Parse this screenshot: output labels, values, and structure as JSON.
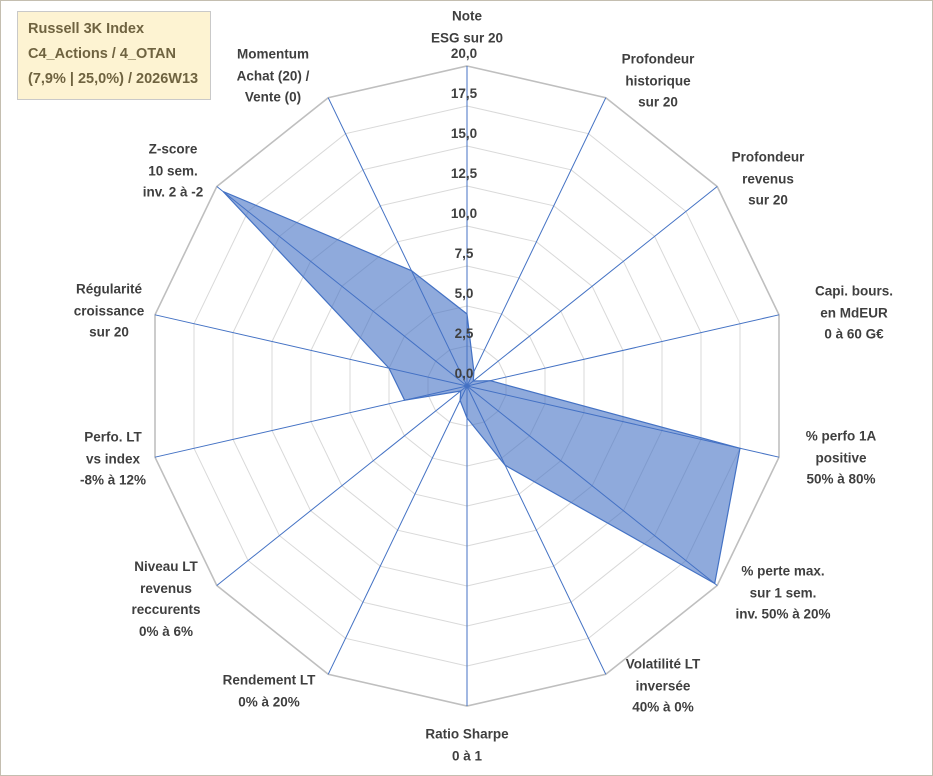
{
  "info_box": {
    "line1": "Russell 3K Index",
    "line2": "C4_Actions / 4_OTAN",
    "line3": "(7,9% | 25,0%) / 2026W13"
  },
  "chart_data": {
    "type": "radar",
    "title": "",
    "categories": [
      "Note\nESG sur 20",
      "Profondeur\nhistorique\nsur 20",
      "Profondeur\nrevenus\nsur 20",
      "Capi. bours.\nen MdEUR\n0 à 60 G€",
      "% perfo 1A\npositive\n50% à 80%",
      "% perte max.\nsur 1 sem.\ninv. 50% à 20%",
      "Volatilité LT\ninversée\n40% à 0%",
      "Ratio Sharpe\n0 à 1",
      "Rendement LT\n0% à 20%",
      "Niveau LT\nrevenus\nreccurents\n0% à 6%",
      "Perfo. LT\nvs index\n-8% à 12%",
      "Régularité\ncroissance\nsur 20",
      "Z-score\n10 sem.\ninv. 2 à -2",
      "Momentum\nAchat (20) /\nVente (0)"
    ],
    "series": [
      {
        "name": "Russell 3K Index",
        "values": [
          4.5,
          1.0,
          0.5,
          1.5,
          17.5,
          19.8,
          5.5,
          2.0,
          1.0,
          0.5,
          4.0,
          5.0,
          19.5,
          8.0
        ]
      }
    ],
    "radial_axis": {
      "min": 0,
      "max": 20,
      "step": 2.5,
      "tick_labels": [
        "0,0",
        "2,5",
        "5,0",
        "7,5",
        "10,0",
        "12,5",
        "15,0",
        "17,5",
        "20,0"
      ]
    },
    "colors": {
      "series_fill": "#4472C4",
      "series_fill_opacity": 0.6,
      "series_stroke": "#4472C4",
      "spoke": "#4472C4",
      "grid": "#D9D9D9",
      "grid_outer": "#BFBFBF",
      "axis_label": "#3F3F3F",
      "info_box_bg": "#FDF3D2",
      "info_box_text": "#6F6340"
    },
    "legend": "none",
    "grid": true
  }
}
